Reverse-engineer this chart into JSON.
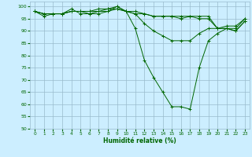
{
  "xlabel": "Humidité relative (%)",
  "bg_color": "#cceeff",
  "grid_color": "#99bbcc",
  "line_color": "#006600",
  "xlim": [
    -0.5,
    23.5
  ],
  "ylim": [
    50,
    102
  ],
  "yticks": [
    50,
    55,
    60,
    65,
    70,
    75,
    80,
    85,
    90,
    95,
    100
  ],
  "xticks": [
    0,
    1,
    2,
    3,
    4,
    5,
    6,
    7,
    8,
    9,
    10,
    11,
    12,
    13,
    14,
    15,
    16,
    17,
    18,
    19,
    20,
    21,
    22,
    23
  ],
  "series": [
    [
      98,
      96,
      97,
      97,
      99,
      97,
      97,
      98,
      98,
      100,
      98,
      91,
      78,
      71,
      65,
      59,
      59,
      58,
      75,
      86,
      89,
      91,
      91,
      95
    ],
    [
      98,
      97,
      97,
      97,
      98,
      98,
      97,
      97,
      98,
      99,
      98,
      97,
      97,
      96,
      96,
      96,
      96,
      96,
      95,
      95,
      91,
      91,
      90,
      94
    ],
    [
      98,
      97,
      97,
      97,
      98,
      98,
      98,
      98,
      99,
      99,
      98,
      97,
      93,
      90,
      88,
      86,
      86,
      86,
      89,
      91,
      91,
      92,
      92,
      95
    ],
    [
      98,
      97,
      97,
      97,
      98,
      98,
      98,
      99,
      99,
      100,
      98,
      98,
      97,
      96,
      96,
      96,
      95,
      96,
      96,
      96,
      91,
      91,
      90,
      94
    ]
  ]
}
